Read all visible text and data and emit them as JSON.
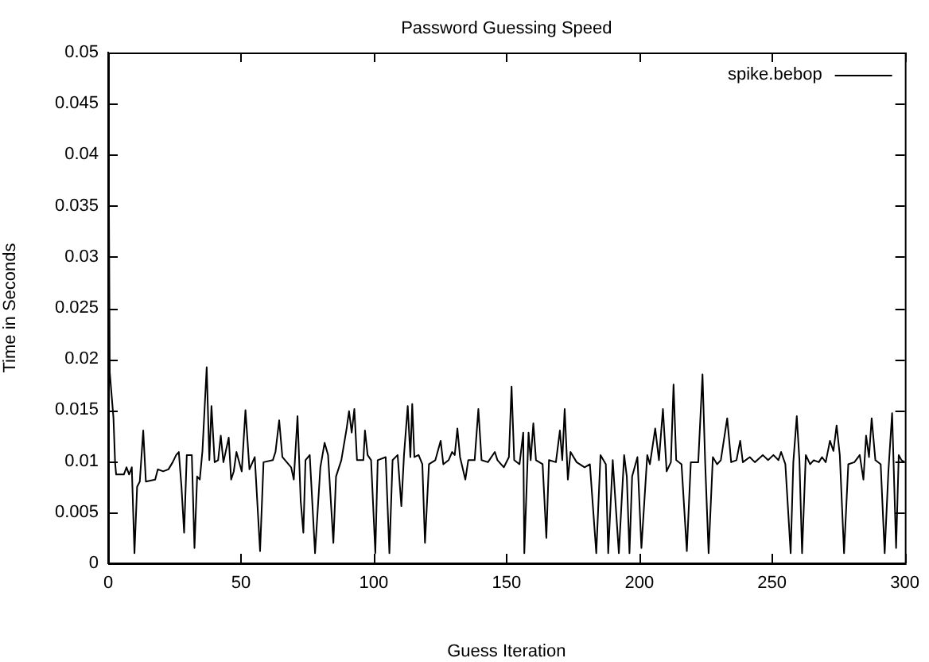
{
  "chart_data": {
    "type": "line",
    "title": "Password Guessing Speed",
    "xlabel": "Guess Iteration",
    "ylabel": "Time in Seconds",
    "xlim": [
      0,
      300
    ],
    "xticks": [
      0,
      50,
      100,
      150,
      200,
      250,
      300
    ],
    "ylim": [
      0,
      0.05
    ],
    "yticks": [
      0,
      0.005,
      0.01,
      0.015,
      0.02,
      0.025,
      0.03,
      0.035,
      0.04,
      0.045,
      0.05
    ],
    "grid": false,
    "legend": "top right",
    "marker": "none",
    "line_style": "solid",
    "series": [
      {
        "name": "spike.bebop",
        "color": "#000000",
        "x": [
          0,
          0.6,
          2,
          2.6,
          3,
          5.9,
          6.9,
          7.9,
          8.9,
          9.9,
          10.9,
          11.9,
          13.2,
          14.2,
          17.7,
          18.7,
          20.7,
          22.7,
          24.3,
          25.6,
          26.6,
          27.6,
          28.6,
          29.6,
          31.5,
          32.5,
          33.5,
          34.5,
          35.5,
          37.1,
          38.1,
          38.9,
          40.1,
          41.4,
          42.4,
          43.4,
          45.4,
          46.3,
          47.3,
          48.3,
          50.3,
          51.7,
          53.2,
          55.2,
          57.2,
          58.5,
          62,
          63,
          64.4,
          65.6,
          68.9,
          69.9,
          71.3,
          72.5,
          73.5,
          74.3,
          75.9,
          77.9,
          79.9,
          81.5,
          82.8,
          84.8,
          85.8,
          87.8,
          89.8,
          90.7,
          91.7,
          92.7,
          93.7,
          96.1,
          96.7,
          97.7,
          99,
          100.6,
          101.5,
          104.5,
          105.9,
          107.1,
          109,
          110.4,
          111.4,
          112.8,
          113.8,
          114.5,
          115.3,
          116.9,
          118.3,
          119.3,
          120.8,
          123.2,
          125.2,
          126.2,
          128.2,
          129.5,
          130.5,
          131.5,
          132.5,
          134.5,
          135.6,
          138,
          139.4,
          140.6,
          143,
          145.6,
          146.6,
          149,
          150.9,
          151.9,
          152.9,
          154.9,
          156.3,
          156.7,
          158.3,
          159.1,
          160.1,
          161.1,
          163.6,
          165,
          166,
          168.6,
          170.1,
          171,
          171.9,
          173.1,
          174.1,
          176.4,
          179.4,
          181.4,
          183.8,
          185.4,
          187.4,
          188.3,
          190,
          192.3,
          194.3,
          195.3,
          196.3,
          197.3,
          199.3,
          200.8,
          203,
          204,
          206,
          207.4,
          208.9,
          210.3,
          211.9,
          212.9,
          213.9,
          215.9,
          217.9,
          219.4,
          222.2,
          223.8,
          224.8,
          226.1,
          227.7,
          229.3,
          230.7,
          233.1,
          234.6,
          236.6,
          238,
          239,
          241.6,
          243.5,
          246.5,
          248.5,
          250.5,
          252.4,
          253.4,
          255,
          257,
          258,
          259.3,
          260.3,
          261.3,
          262.7,
          264.3,
          265.7,
          267.6,
          268.8,
          270.2,
          271.8,
          273.1,
          274.3,
          275.5,
          277.1,
          278.7,
          281,
          283,
          284.4,
          285.4,
          286.5,
          287.5,
          288.9,
          290.9,
          292.4,
          293.8,
          295.2,
          296.7,
          297.7,
          298.7,
          300
        ],
        "values": [
          0.05,
          0.0187,
          0.0142,
          0.0099,
          0.0087,
          0.0087,
          0.0094,
          0.0087,
          0.0094,
          0.001,
          0.0075,
          0.008,
          0.013,
          0.008,
          0.0082,
          0.0092,
          0.009,
          0.0092,
          0.0099,
          0.0106,
          0.0109,
          0.0075,
          0.003,
          0.0106,
          0.0106,
          0.0015,
          0.0085,
          0.0082,
          0.011,
          0.0192,
          0.0101,
          0.0154,
          0.0099,
          0.0101,
          0.0125,
          0.0099,
          0.0123,
          0.0082,
          0.009,
          0.0109,
          0.009,
          0.015,
          0.0092,
          0.0104,
          0.0012,
          0.0099,
          0.0101,
          0.0109,
          0.014,
          0.0104,
          0.0094,
          0.0082,
          0.0144,
          0.0061,
          0.003,
          0.0101,
          0.0106,
          0.001,
          0.0094,
          0.0118,
          0.0106,
          0.002,
          0.0085,
          0.0101,
          0.0132,
          0.0149,
          0.0128,
          0.0151,
          0.0101,
          0.0101,
          0.013,
          0.0106,
          0.0101,
          0.001,
          0.0101,
          0.0104,
          0.001,
          0.0101,
          0.0106,
          0.0056,
          0.0106,
          0.0154,
          0.0104,
          0.0156,
          0.0104,
          0.0106,
          0.0097,
          0.002,
          0.0097,
          0.0101,
          0.012,
          0.0097,
          0.0101,
          0.0109,
          0.0106,
          0.0132,
          0.0104,
          0.0082,
          0.0101,
          0.0101,
          0.0151,
          0.0101,
          0.0099,
          0.0109,
          0.0101,
          0.0094,
          0.0104,
          0.0173,
          0.0101,
          0.0097,
          0.0128,
          0.001,
          0.0128,
          0.0101,
          0.0137,
          0.0101,
          0.0097,
          0.0025,
          0.0101,
          0.0099,
          0.013,
          0.0101,
          0.0151,
          0.0082,
          0.0109,
          0.0099,
          0.0094,
          0.0097,
          0.001,
          0.0106,
          0.0097,
          0.001,
          0.0101,
          0.001,
          0.0106,
          0.0085,
          0.001,
          0.0085,
          0.0104,
          0.0015,
          0.0106,
          0.0097,
          0.0132,
          0.0101,
          0.0151,
          0.009,
          0.0099,
          0.0175,
          0.0101,
          0.0097,
          0.0012,
          0.0099,
          0.0099,
          0.0185,
          0.0099,
          0.001,
          0.0104,
          0.0097,
          0.0101,
          0.0142,
          0.0099,
          0.0101,
          0.012,
          0.0099,
          0.0104,
          0.0099,
          0.0106,
          0.0101,
          0.0106,
          0.0101,
          0.0109,
          0.0097,
          0.001,
          0.0099,
          0.0144,
          0.0101,
          0.001,
          0.0106,
          0.0097,
          0.0101,
          0.0099,
          0.0104,
          0.0099,
          0.012,
          0.011,
          0.0135,
          0.0106,
          0.001,
          0.0097,
          0.0099,
          0.0106,
          0.0082,
          0.0125,
          0.0104,
          0.0142,
          0.0101,
          0.0097,
          0.001,
          0.009,
          0.0147,
          0.0015,
          0.0106,
          0.0101,
          0.0099
        ]
      }
    ]
  }
}
